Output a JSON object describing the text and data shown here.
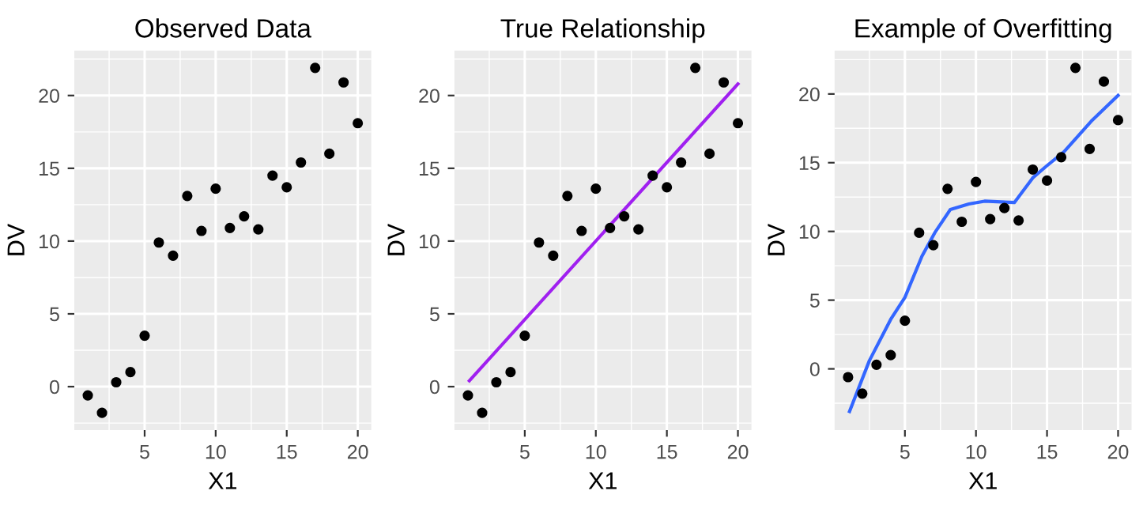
{
  "chart_data": [
    {
      "type": "scatter",
      "title": "Observed Data",
      "xlabel": "X1",
      "ylabel": "DV",
      "xlim": [
        0.05,
        20.95
      ],
      "ylim": [
        -2.985,
        23.085
      ],
      "xticks": [
        5,
        10,
        15,
        20
      ],
      "yticks": [
        0,
        5,
        10,
        15,
        20
      ],
      "grid": true,
      "series": [
        {
          "color": "#000000",
          "marker": "circle",
          "x": [
            1,
            2,
            3,
            4,
            5,
            6,
            7,
            8,
            9,
            10,
            11,
            12,
            13,
            14,
            15,
            16,
            17,
            18,
            19,
            20
          ],
          "values": [
            -0.6,
            -1.8,
            0.3,
            1.0,
            3.5,
            9.9,
            9.0,
            13.1,
            10.7,
            13.6,
            10.9,
            11.7,
            10.8,
            14.5,
            13.7,
            15.4,
            21.9,
            16.0,
            20.9,
            18.1
          ]
        }
      ]
    },
    {
      "type": "scatter",
      "title": "True Relationship",
      "xlabel": "X1",
      "ylabel": "DV",
      "xlim": [
        0.05,
        20.95
      ],
      "ylim": [
        -2.985,
        23.085
      ],
      "xticks": [
        5,
        10,
        15,
        20
      ],
      "yticks": [
        0,
        5,
        10,
        15,
        20
      ],
      "grid": true,
      "series": [
        {
          "color": "#000000",
          "marker": "circle",
          "x": [
            1,
            2,
            3,
            4,
            5,
            6,
            7,
            8,
            9,
            10,
            11,
            12,
            13,
            14,
            15,
            16,
            17,
            18,
            19,
            20
          ],
          "values": [
            -0.6,
            -1.8,
            0.3,
            1.0,
            3.5,
            9.9,
            9.0,
            13.1,
            10.7,
            13.6,
            10.9,
            11.7,
            10.8,
            14.5,
            13.7,
            15.4,
            21.9,
            16.0,
            20.9,
            18.1
          ]
        },
        {
          "type": "line",
          "color": "#a020f0",
          "x": [
            1.1,
            20
          ],
          "values": [
            0.4,
            20.8
          ]
        }
      ]
    },
    {
      "type": "scatter",
      "title": "Example of Overfitting",
      "xlabel": "X1",
      "ylabel": "DV",
      "xlim": [
        0.05,
        20.95
      ],
      "ylim": [
        -4.455,
        23.155
      ],
      "xticks": [
        5,
        10,
        15,
        20
      ],
      "yticks": [
        0,
        5,
        10,
        15,
        20
      ],
      "grid": true,
      "series": [
        {
          "color": "#000000",
          "marker": "circle",
          "x": [
            1,
            2,
            3,
            4,
            5,
            6,
            7,
            8,
            9,
            10,
            11,
            12,
            13,
            14,
            15,
            16,
            17,
            18,
            19,
            20
          ],
          "values": [
            -0.6,
            -1.8,
            0.3,
            1.0,
            3.5,
            9.9,
            9.0,
            13.1,
            10.7,
            13.6,
            10.9,
            11.7,
            10.8,
            14.5,
            13.7,
            15.4,
            21.9,
            16.0,
            20.9,
            18.1
          ]
        },
        {
          "type": "line",
          "color": "#3366ff",
          "x": [
            1.1,
            2.5,
            4,
            5,
            6.2,
            7.1,
            8.2,
            9.5,
            10.6,
            12.7,
            14,
            14.9,
            16.2,
            18.1,
            20
          ],
          "values": [
            -3.1,
            0.6,
            3.6,
            5.2,
            8.2,
            9.9,
            11.6,
            12.0,
            12.2,
            12.1,
            13.9,
            14.7,
            15.8,
            18.0,
            19.9
          ]
        }
      ]
    }
  ]
}
